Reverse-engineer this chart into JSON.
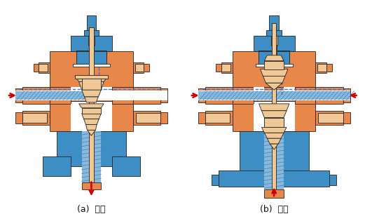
{
  "title_a": "(a)  分流",
  "title_b": "(b)  合流",
  "OR": "#E8874A",
  "BL": "#3D8EC4",
  "LO": "#F0C896",
  "WH": "#FFFFFF",
  "RD": "#CC0000",
  "BG": "#FFFFFF",
  "label_fs": 9,
  "label_color": "#111111",
  "hatch_blue": "#88B8DC",
  "hatch_line": "#4488BB",
  "outline": "#333333"
}
